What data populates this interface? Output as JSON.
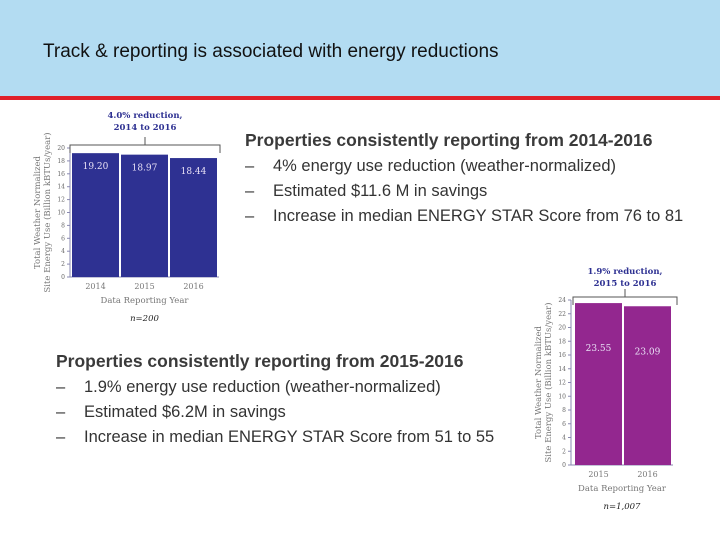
{
  "slide": {
    "title": "Track & reporting is associated with energy reductions"
  },
  "block1": {
    "heading": "Properties consistently reporting from 2014-2016",
    "bullets": [
      "4% energy use reduction (weather-normalized)",
      "Estimated $11.6 M in savings",
      "Increase in median ENERGY STAR Score from 76 to 81"
    ],
    "dash": "–"
  },
  "block2": {
    "heading": "Properties consistently reporting from 2015-2016",
    "bullets": [
      "1.9% energy use reduction (weather-normalized)",
      "Estimated $6.2M in savings",
      "Increase in median ENERGY STAR Score from 51 to 55"
    ],
    "dash": "–"
  },
  "chart_data": [
    {
      "type": "bar",
      "categories": [
        "2014",
        "2015",
        "2016"
      ],
      "values": [
        19.2,
        18.97,
        18.44
      ],
      "value_labels": [
        "19.20",
        "18.97",
        "18.44"
      ],
      "ylabel": "Total Weather Normalized Site Energy Use (Billion kBTUs/year)",
      "xlabel": "Data Reporting Year",
      "ylim": [
        0,
        20
      ],
      "yticks": [
        0,
        2,
        4,
        6,
        8,
        10,
        12,
        14,
        16,
        18,
        20
      ],
      "annotation": [
        "4.0% reduction,",
        "2014 to 2016"
      ],
      "note": "n=200",
      "color": "#2e3192"
    },
    {
      "type": "bar",
      "categories": [
        "2015",
        "2016"
      ],
      "values": [
        23.55,
        23.09
      ],
      "value_labels": [
        "23.55",
        "23.09"
      ],
      "ylabel": "Total Weather Normalized Site Energy Use (Billion kBTUs/year)",
      "xlabel": "Data Reporting Year",
      "ylim": [
        0,
        24
      ],
      "yticks": [
        0,
        2,
        4,
        6,
        8,
        10,
        12,
        14,
        16,
        18,
        20,
        22,
        24
      ],
      "annotation": [
        "1.9% reduction,",
        "2015 to 2016"
      ],
      "note": "n=1,007",
      "color": "#93278f"
    }
  ]
}
